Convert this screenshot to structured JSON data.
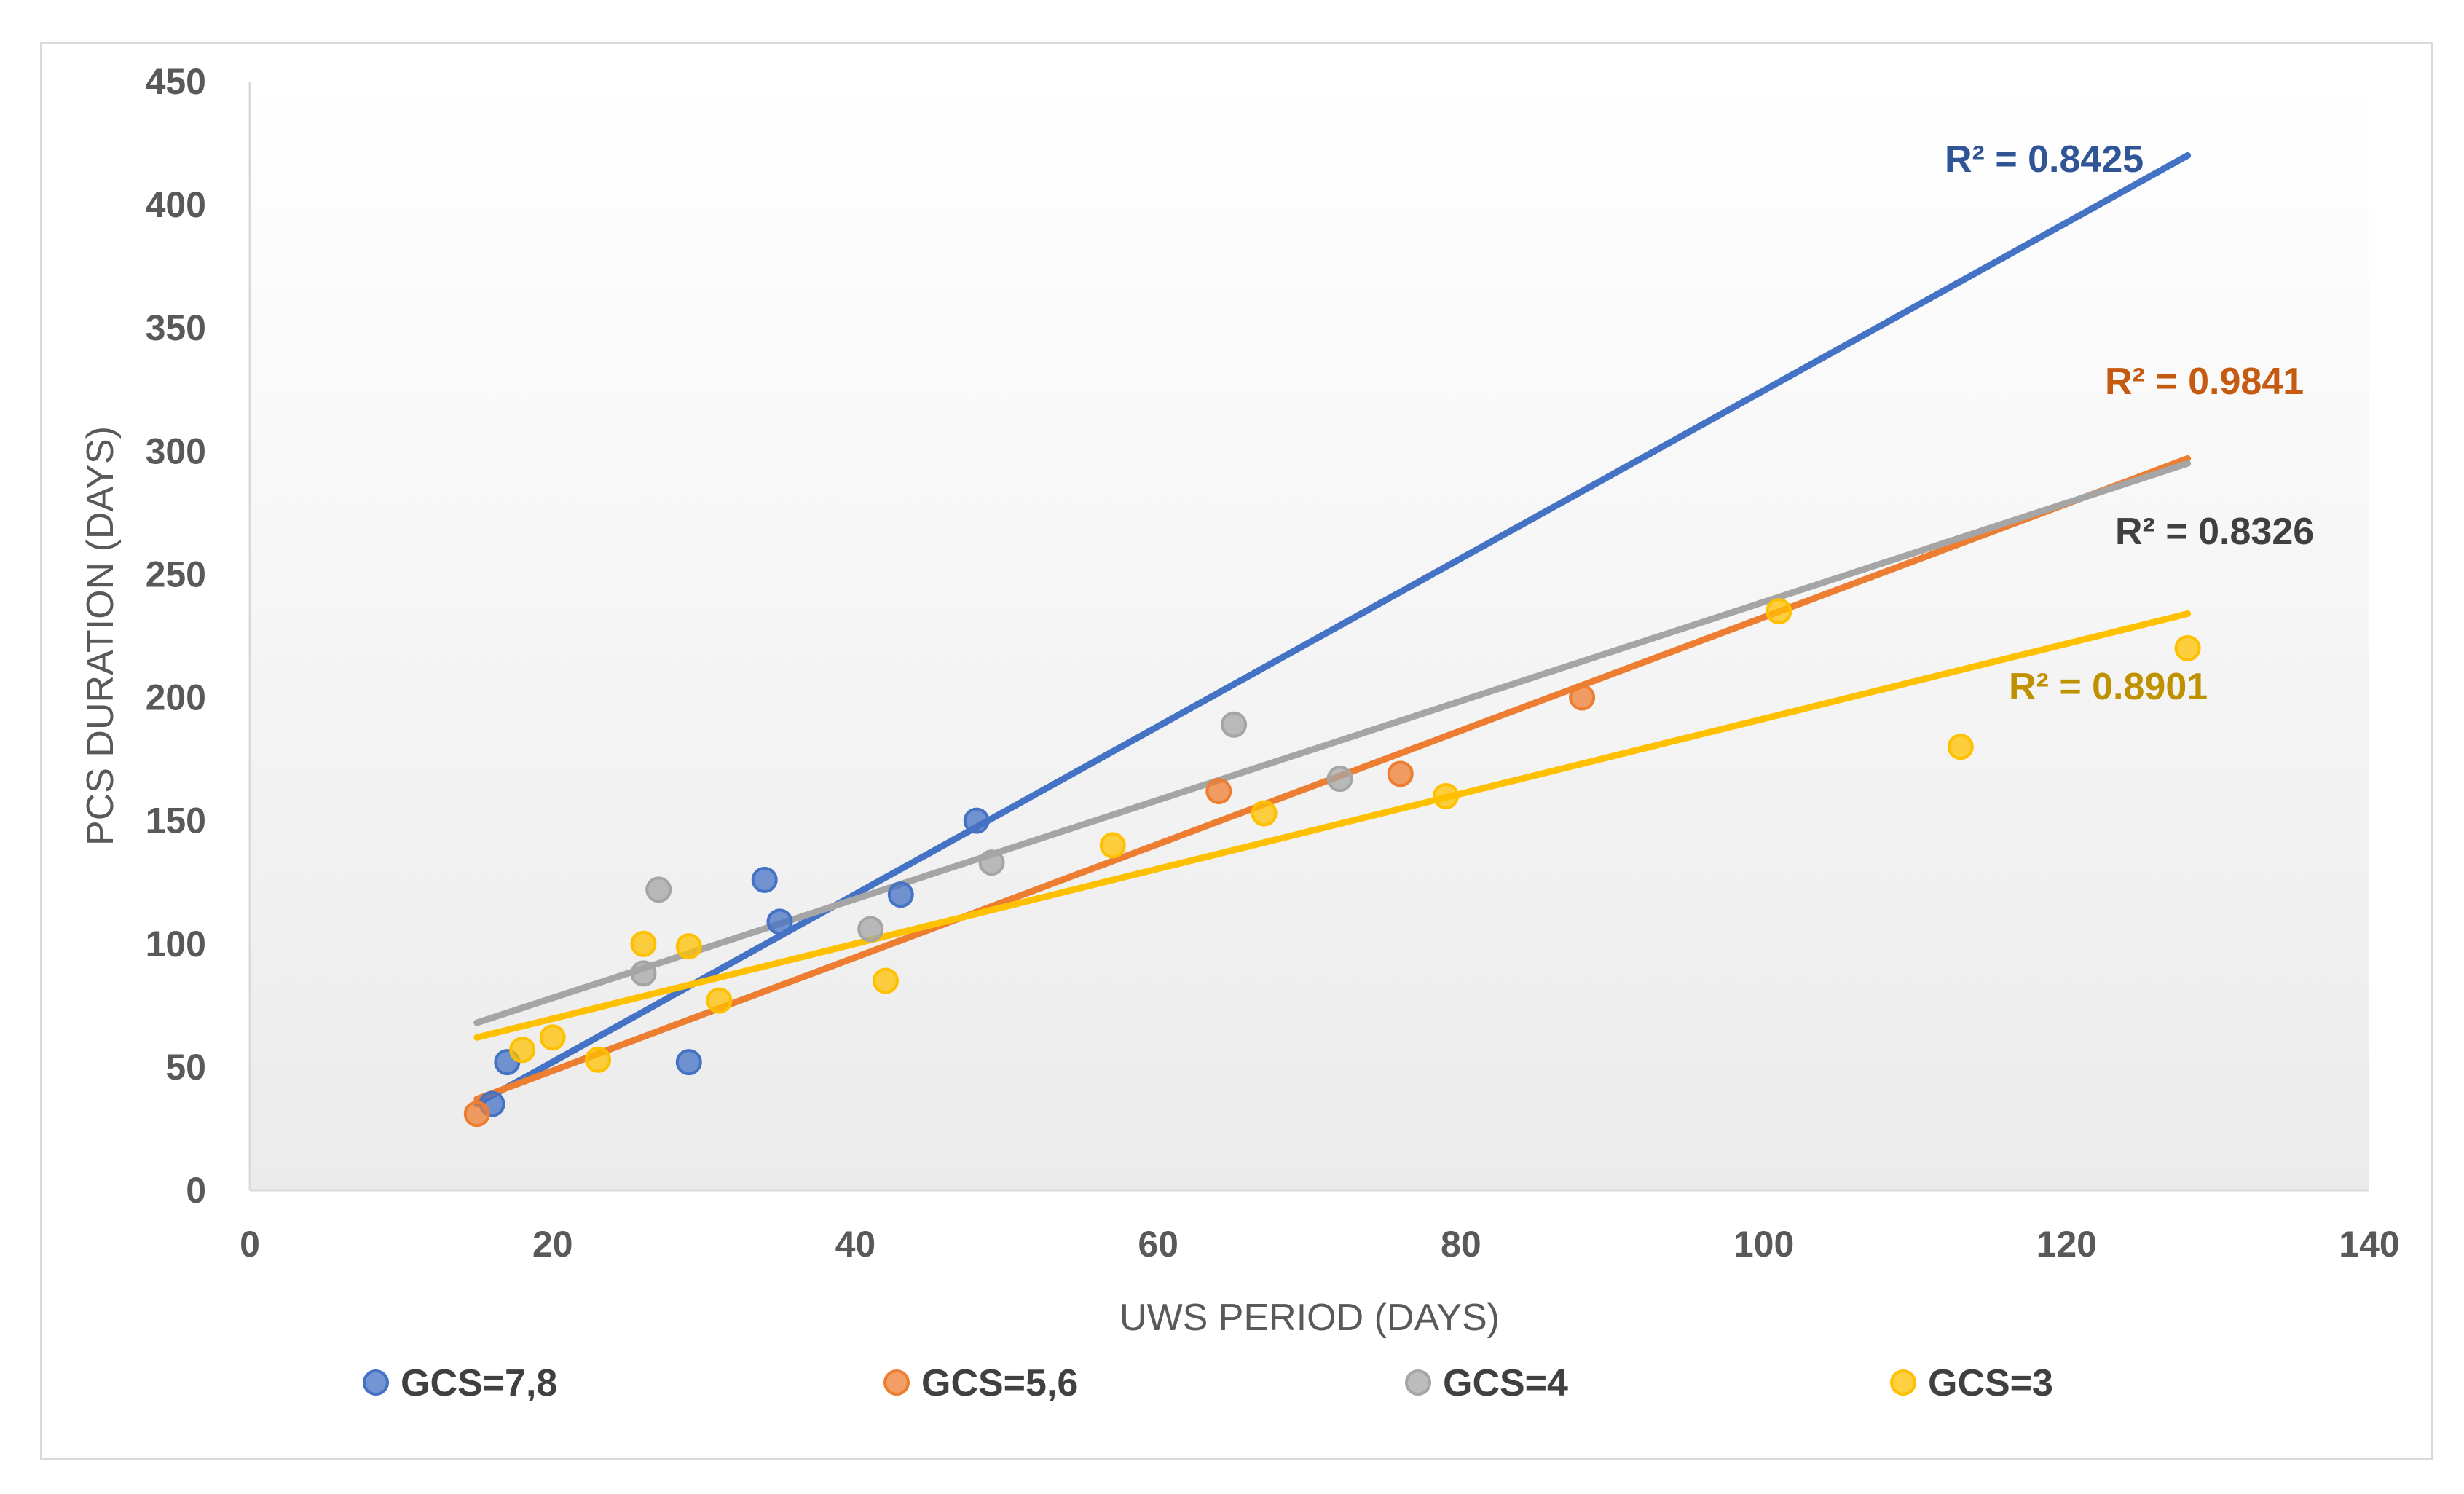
{
  "chart_data": {
    "type": "scatter",
    "title": "",
    "xlabel": "UWS PERIOD (DAYS)",
    "ylabel": "PCS DURATION (DAYS)",
    "xlim": [
      0,
      140
    ],
    "ylim": [
      0,
      450
    ],
    "x_ticks": [
      0,
      20,
      40,
      60,
      80,
      100,
      120,
      140
    ],
    "y_ticks": [
      0,
      50,
      100,
      150,
      200,
      250,
      300,
      350,
      400,
      450
    ],
    "grid": false,
    "legend_position": "bottom",
    "trendline": "linear",
    "series": [
      {
        "name": "GCS=7,8",
        "color": "#4472c4",
        "line_color": "#4472c4",
        "points": [
          [
            16,
            35
          ],
          [
            17,
            52
          ],
          [
            29,
            52
          ],
          [
            34,
            126
          ],
          [
            35,
            109
          ],
          [
            43,
            120
          ],
          [
            48,
            150
          ]
        ],
        "trend": [
          [
            15,
            35
          ],
          [
            128,
            420
          ]
        ],
        "r2_label": "R² = 0.8425",
        "r2_color": "#2f5597"
      },
      {
        "name": "GCS=5,6",
        "color": "#ed7d31",
        "line_color": "#ed7d31",
        "points": [
          [
            15,
            31
          ],
          [
            64,
            162
          ],
          [
            76,
            169
          ],
          [
            88,
            200
          ]
        ],
        "trend": [
          [
            15,
            37
          ],
          [
            128,
            297
          ]
        ],
        "r2_label": "R² = 0.9841",
        "r2_color": "#c55a11"
      },
      {
        "name": "GCS=4",
        "color": "#a5a5a5",
        "line_color": "#a5a5a5",
        "points": [
          [
            26,
            88
          ],
          [
            27,
            122
          ],
          [
            41,
            106
          ],
          [
            49,
            133
          ],
          [
            65,
            189
          ],
          [
            72,
            167
          ]
        ],
        "trend": [
          [
            15,
            68
          ],
          [
            128,
            295
          ]
        ],
        "r2_label": "R² = 0.8326",
        "r2_color": "#404040"
      },
      {
        "name": "GCS=3",
        "color": "#ffc000",
        "line_color": "#ffc000",
        "points": [
          [
            18,
            57
          ],
          [
            20,
            62
          ],
          [
            23,
            53
          ],
          [
            26,
            100
          ],
          [
            29,
            99
          ],
          [
            31,
            77
          ],
          [
            42,
            85
          ],
          [
            57,
            140
          ],
          [
            67,
            153
          ],
          [
            79,
            160
          ],
          [
            101,
            235
          ],
          [
            113,
            180
          ],
          [
            128,
            220
          ]
        ],
        "trend": [
          [
            15,
            62
          ],
          [
            128,
            234
          ]
        ],
        "r2_label": "R² = 0.8901",
        "r2_color": "#bf9000"
      }
    ]
  }
}
